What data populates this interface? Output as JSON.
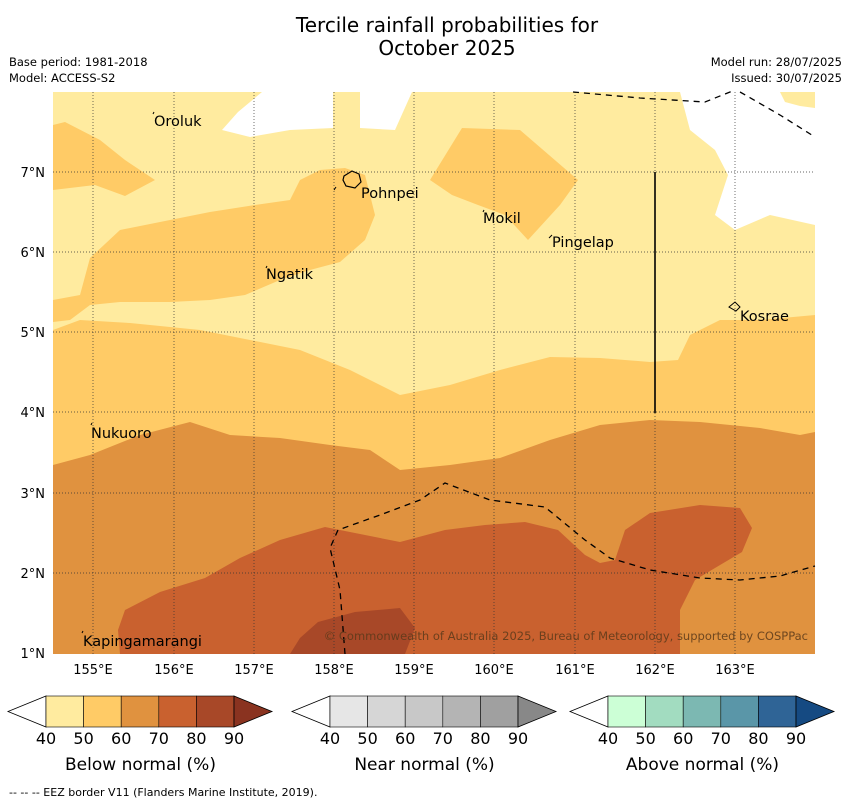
{
  "title": {
    "line1": "Tercile rainfall probabilities for",
    "line2": "October 2025"
  },
  "meta": {
    "base_period": "Base period: 1981-2018",
    "model": "Model: ACCESS-S2",
    "model_run": "Model run: 28/07/2025",
    "issued": "Issued: 30/07/2025"
  },
  "map": {
    "lat_labels": [
      "7°N",
      "6°N",
      "5°N",
      "4°N",
      "3°N",
      "2°N",
      "1°N"
    ],
    "lon_labels": [
      "155°E",
      "156°E",
      "157°E",
      "158°E",
      "159°E",
      "160°E",
      "161°E",
      "162°E",
      "163°E"
    ],
    "places": [
      {
        "name": "Oroluk"
      },
      {
        "name": "Pohnpei"
      },
      {
        "name": "Mokil"
      },
      {
        "name": "Pingelap"
      },
      {
        "name": "Ngatik"
      },
      {
        "name": "Kosrae"
      },
      {
        "name": "Nukuoro"
      },
      {
        "name": "Kapingamarangi"
      }
    ],
    "copyright": "© Commonwealth of Australia 2025, Bureau of Meteorology, supported by COSPPac"
  },
  "colorbars": [
    {
      "label": "Below normal (%)",
      "ticks": [
        "40",
        "50",
        "60",
        "70",
        "80",
        "90"
      ],
      "colors": [
        "#ffeb9f",
        "#ffcb66",
        "#e0923f",
        "#c9612f",
        "#a84828",
        "#8a3320"
      ]
    },
    {
      "label": "Near normal (%)",
      "ticks": [
        "40",
        "50",
        "60",
        "70",
        "80",
        "90"
      ],
      "colors": [
        "#e6e6e6",
        "#d6d6d6",
        "#c8c8c8",
        "#b4b4b4",
        "#a0a0a0",
        "#888888"
      ]
    },
    {
      "label": "Above normal (%)",
      "ticks": [
        "40",
        "50",
        "60",
        "70",
        "80",
        "90"
      ],
      "colors": [
        "#ccffd6",
        "#a2dcc0",
        "#7cb8b2",
        "#5a96a8",
        "#2f6496",
        "#154a82"
      ]
    }
  ],
  "footnote": "--  --  -- EEZ border V11 (Flanders Marine Institute, 2019).",
  "colors": {
    "below_40_50": "#ffeb9f",
    "below_50_60": "#ffcb66",
    "below_60_70": "#e0923f",
    "below_70_80": "#c9612f",
    "below_80_90": "#a84828"
  }
}
